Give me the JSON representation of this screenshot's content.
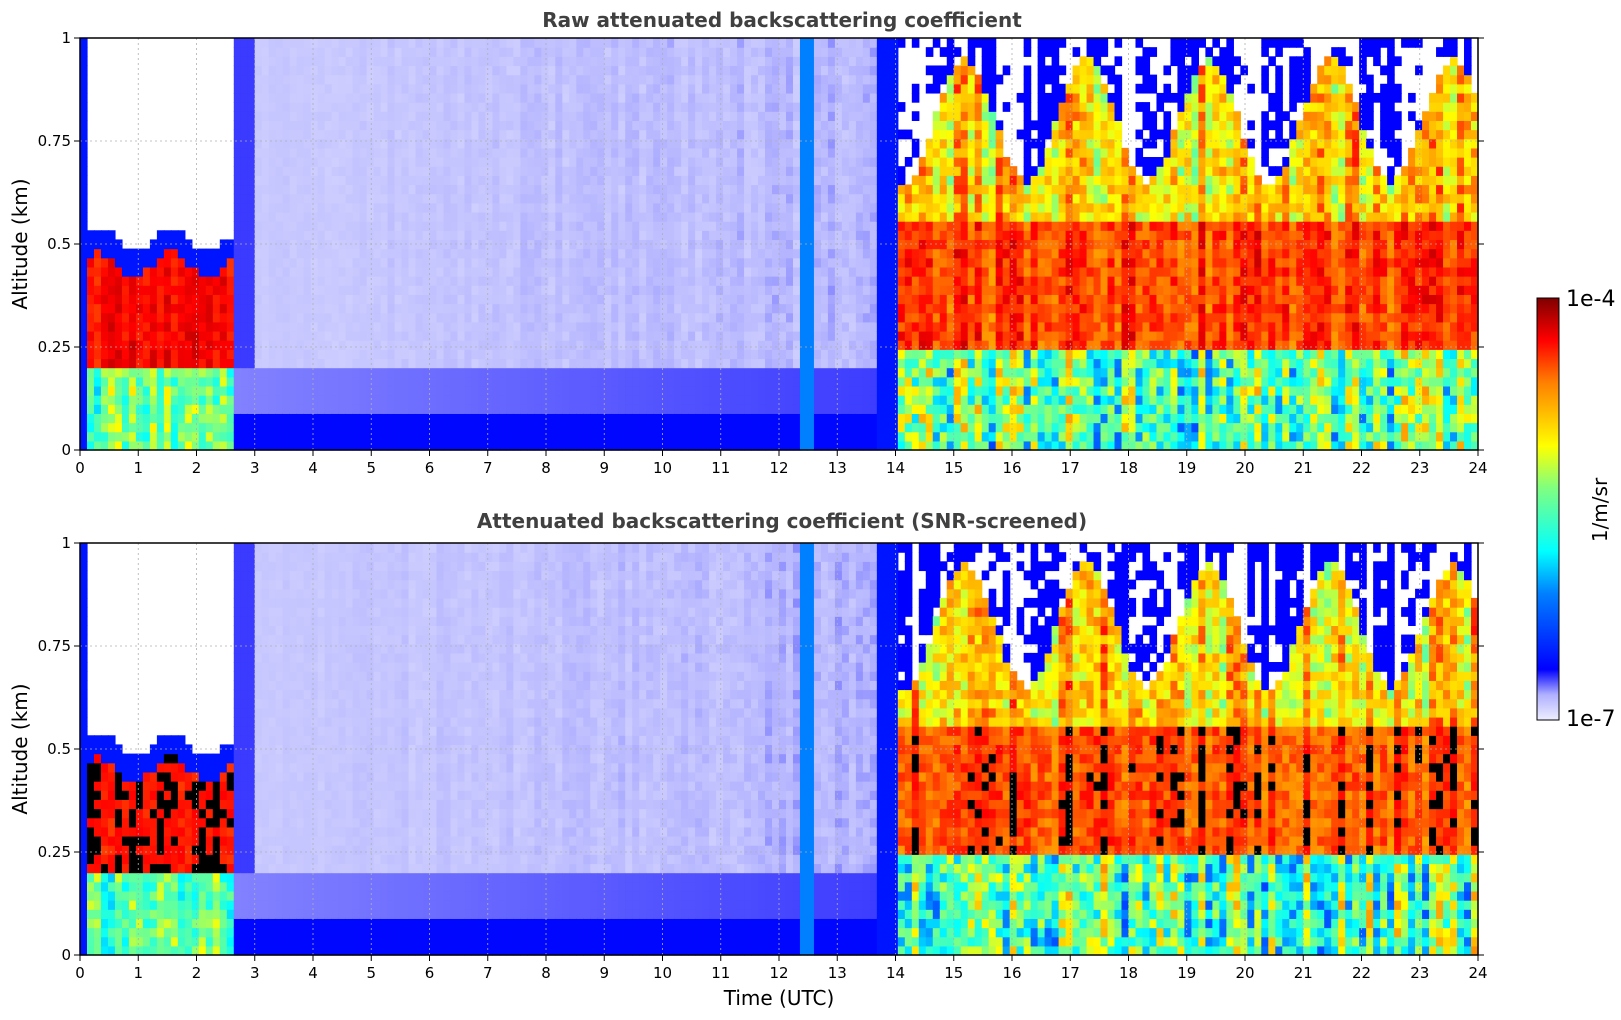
{
  "chart_data": [
    {
      "type": "heatmap",
      "title": "Raw attenuated backscattering coefficient",
      "xlabel": "",
      "ylabel": "Altitude (km)",
      "xlim": [
        0,
        24
      ],
      "ylim": [
        0,
        1
      ],
      "x_ticks": [
        "0",
        "1",
        "2",
        "3",
        "4",
        "5",
        "6",
        "7",
        "8",
        "9",
        "10",
        "11",
        "12",
        "13",
        "14",
        "15",
        "16",
        "17",
        "18",
        "19",
        "20",
        "21",
        "22",
        "23",
        "24"
      ],
      "y_ticks": [
        "0",
        "0.25",
        "0.5",
        "0.75",
        "1"
      ],
      "grid": true,
      "colorscale": "jet",
      "log_scale": true,
      "clim": [
        1e-07,
        0.0001
      ],
      "description_regions": [
        {
          "time": [
            0,
            2.6
          ],
          "altitude": [
            0.2,
            0.5
          ],
          "level": "high"
        },
        {
          "time": [
            2.6,
            14
          ],
          "altitude": [
            0,
            1
          ],
          "level": "low"
        },
        {
          "time": [
            14,
            24
          ],
          "altitude": [
            0.2,
            0.75
          ],
          "level": "high"
        }
      ]
    },
    {
      "type": "heatmap",
      "title": "Attenuated backscattering coefficient (SNR-screened)",
      "xlabel": "Time (UTC)",
      "ylabel": "Altitude (km)",
      "xlim": [
        0,
        24
      ],
      "ylim": [
        0,
        1
      ],
      "x_ticks": [
        "0",
        "1",
        "2",
        "3",
        "4",
        "5",
        "6",
        "7",
        "8",
        "9",
        "10",
        "11",
        "12",
        "13",
        "14",
        "15",
        "16",
        "17",
        "18",
        "19",
        "20",
        "21",
        "22",
        "23",
        "24"
      ],
      "y_ticks": [
        "0",
        "0.25",
        "0.5",
        "0.75",
        "1"
      ],
      "grid": true,
      "colorscale": "jet",
      "log_scale": true,
      "clim": [
        1e-07,
        0.0001
      ],
      "description_regions": [
        {
          "time": [
            0,
            2.6
          ],
          "altitude": [
            0.2,
            0.5
          ],
          "level": "saturated"
        },
        {
          "time": [
            2.6,
            14
          ],
          "altitude": [
            0,
            1
          ],
          "level": "low"
        },
        {
          "time": [
            14,
            24
          ],
          "altitude": [
            0.2,
            0.75
          ],
          "level": "saturated"
        }
      ]
    }
  ],
  "colorbar": {
    "max_label": "1e-4",
    "min_label": "1e-7",
    "unit_label": "1/m/sr"
  }
}
